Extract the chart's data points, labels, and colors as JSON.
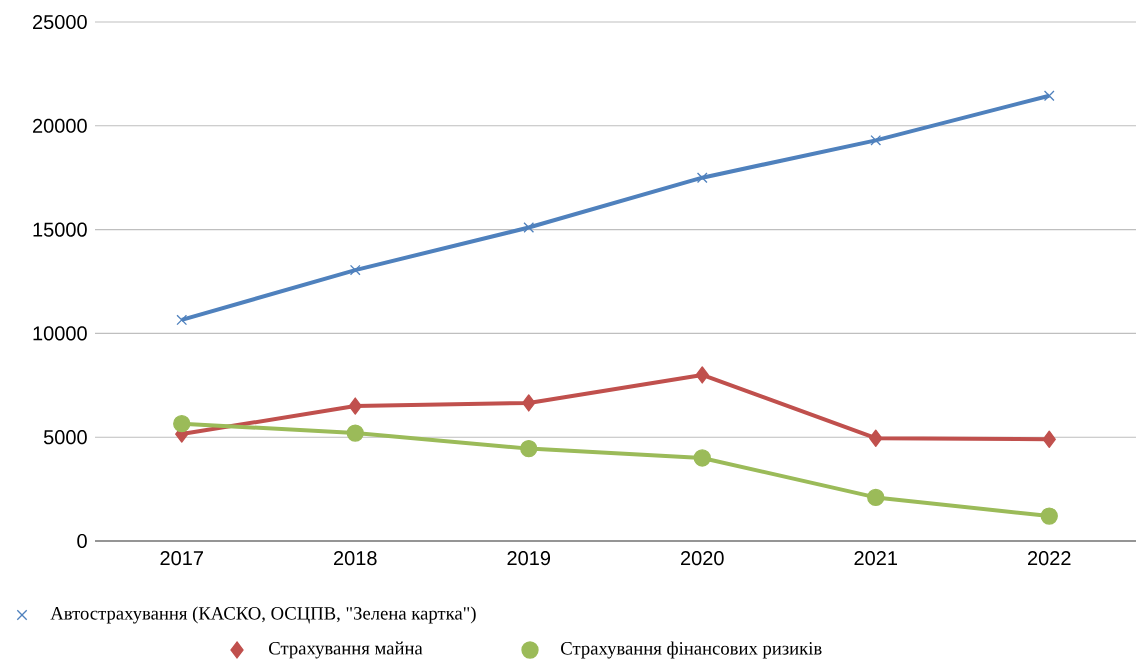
{
  "chart_data": {
    "type": "line",
    "categories": [
      "2017",
      "2018",
      "2019",
      "2020",
      "2021",
      "2022"
    ],
    "series": [
      {
        "name": "Автострахування (КАСКО, ОСЦПВ, \"Зелена картка\")",
        "color": "#4f81bd",
        "marker": "cross",
        "values": [
          10650,
          13050,
          15100,
          17500,
          19300,
          21450
        ]
      },
      {
        "name": "Страхування майна",
        "color": "#c0504d",
        "marker": "diamond",
        "values": [
          5150,
          6500,
          6650,
          8000,
          4950,
          4900
        ]
      },
      {
        "name": "Страхування фінансових ризиків",
        "color": "#9bbb59",
        "marker": "circle",
        "values": [
          5650,
          5200,
          4450,
          4000,
          2100,
          1200
        ]
      }
    ],
    "ylim": [
      0,
      25000
    ],
    "yticks": [
      0,
      5000,
      10000,
      15000,
      20000,
      25000
    ],
    "grid": "y",
    "legend": "bottom"
  }
}
